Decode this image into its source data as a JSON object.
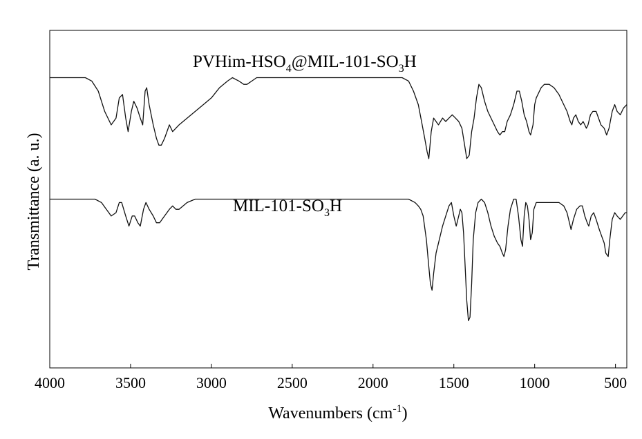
{
  "chart_data": {
    "type": "line",
    "title": "",
    "xlabel": "Wavenumbers (cm",
    "xlabel_sup": "-1",
    "xlabel_tail": ")",
    "ylabel": "Transmittance (a. u.)",
    "xlim": [
      4000,
      430
    ],
    "ylim": [
      0,
      100
    ],
    "xticks": [
      4000,
      3500,
      3000,
      2500,
      2000,
      1500,
      1000,
      500
    ],
    "xtick_labels": [
      "4000",
      "3500",
      "3000",
      "2500",
      "2000",
      "1500",
      "1000",
      "500"
    ],
    "show_yticks": false,
    "series": [
      {
        "name": "PVHim-HSO4@MIL-101-SO3H",
        "label_main": "PVHim-HSO",
        "label_sub": "4",
        "label_mid": "@MIL-101-SO",
        "label_sub2": "3",
        "label_end": "H",
        "points": [
          [
            4000,
            86
          ],
          [
            3780,
            86
          ],
          [
            3740,
            85
          ],
          [
            3700,
            82
          ],
          [
            3660,
            76
          ],
          [
            3620,
            72
          ],
          [
            3590,
            74
          ],
          [
            3570,
            80
          ],
          [
            3550,
            81
          ],
          [
            3530,
            74
          ],
          [
            3515,
            70
          ],
          [
            3495,
            76
          ],
          [
            3480,
            79
          ],
          [
            3460,
            77
          ],
          [
            3440,
            74
          ],
          [
            3425,
            72
          ],
          [
            3410,
            82
          ],
          [
            3400,
            83
          ],
          [
            3385,
            78
          ],
          [
            3360,
            72
          ],
          [
            3340,
            68
          ],
          [
            3325,
            66
          ],
          [
            3310,
            66
          ],
          [
            3290,
            68
          ],
          [
            3260,
            72
          ],
          [
            3240,
            70
          ],
          [
            3220,
            71
          ],
          [
            3200,
            72
          ],
          [
            3150,
            74
          ],
          [
            3100,
            76
          ],
          [
            3050,
            78
          ],
          [
            3000,
            80
          ],
          [
            2950,
            83
          ],
          [
            2900,
            85
          ],
          [
            2870,
            86
          ],
          [
            2830,
            85
          ],
          [
            2800,
            84
          ],
          [
            2780,
            84
          ],
          [
            2750,
            85
          ],
          [
            2720,
            86
          ],
          [
            2600,
            86
          ],
          [
            2500,
            86
          ],
          [
            2400,
            86
          ],
          [
            2330,
            86
          ],
          [
            2300,
            86
          ],
          [
            2000,
            86
          ],
          [
            1820,
            86
          ],
          [
            1780,
            85
          ],
          [
            1750,
            82
          ],
          [
            1720,
            78
          ],
          [
            1700,
            73
          ],
          [
            1680,
            68
          ],
          [
            1665,
            64
          ],
          [
            1655,
            62
          ],
          [
            1640,
            70
          ],
          [
            1625,
            74
          ],
          [
            1610,
            73
          ],
          [
            1595,
            72
          ],
          [
            1570,
            74
          ],
          [
            1550,
            73
          ],
          [
            1530,
            74
          ],
          [
            1510,
            75
          ],
          [
            1490,
            74
          ],
          [
            1470,
            73
          ],
          [
            1450,
            71
          ],
          [
            1430,
            65
          ],
          [
            1420,
            62
          ],
          [
            1405,
            63
          ],
          [
            1390,
            70
          ],
          [
            1375,
            74
          ],
          [
            1360,
            80
          ],
          [
            1345,
            84
          ],
          [
            1330,
            83
          ],
          [
            1310,
            79
          ],
          [
            1290,
            76
          ],
          [
            1270,
            74
          ],
          [
            1250,
            72
          ],
          [
            1230,
            70
          ],
          [
            1215,
            69
          ],
          [
            1200,
            70
          ],
          [
            1185,
            70
          ],
          [
            1170,
            73
          ],
          [
            1150,
            75
          ],
          [
            1130,
            78
          ],
          [
            1110,
            82
          ],
          [
            1095,
            82
          ],
          [
            1080,
            79
          ],
          [
            1065,
            75
          ],
          [
            1050,
            73
          ],
          [
            1035,
            70
          ],
          [
            1025,
            69
          ],
          [
            1010,
            72
          ],
          [
            1000,
            78
          ],
          [
            990,
            80
          ],
          [
            960,
            83
          ],
          [
            940,
            84
          ],
          [
            910,
            84
          ],
          [
            880,
            83
          ],
          [
            850,
            81
          ],
          [
            820,
            78
          ],
          [
            800,
            76
          ],
          [
            780,
            73
          ],
          [
            770,
            72
          ],
          [
            760,
            74
          ],
          [
            745,
            75
          ],
          [
            730,
            73
          ],
          [
            715,
            72
          ],
          [
            700,
            73
          ],
          [
            690,
            72
          ],
          [
            680,
            71
          ],
          [
            670,
            72
          ],
          [
            655,
            75
          ],
          [
            640,
            76
          ],
          [
            620,
            76
          ],
          [
            605,
            74
          ],
          [
            590,
            72
          ],
          [
            570,
            71
          ],
          [
            555,
            69
          ],
          [
            540,
            71
          ],
          [
            520,
            76
          ],
          [
            505,
            78
          ],
          [
            490,
            76
          ],
          [
            470,
            75
          ],
          [
            450,
            77
          ],
          [
            430,
            78
          ]
        ]
      },
      {
        "name": "MIL-101-SO3H",
        "label_main": "MIL-101-SO",
        "label_sub": "3",
        "label_end": "H",
        "points": [
          [
            4000,
            50
          ],
          [
            3800,
            50
          ],
          [
            3720,
            50
          ],
          [
            3680,
            49
          ],
          [
            3650,
            47
          ],
          [
            3620,
            45
          ],
          [
            3590,
            46
          ],
          [
            3570,
            49
          ],
          [
            3555,
            49
          ],
          [
            3530,
            45
          ],
          [
            3510,
            42
          ],
          [
            3490,
            45
          ],
          [
            3475,
            45
          ],
          [
            3455,
            43
          ],
          [
            3440,
            42
          ],
          [
            3420,
            47
          ],
          [
            3405,
            49
          ],
          [
            3385,
            47
          ],
          [
            3360,
            45
          ],
          [
            3340,
            43
          ],
          [
            3320,
            43
          ],
          [
            3290,
            45
          ],
          [
            3260,
            47
          ],
          [
            3240,
            48
          ],
          [
            3220,
            47
          ],
          [
            3200,
            47
          ],
          [
            3150,
            49
          ],
          [
            3100,
            50
          ],
          [
            3050,
            50
          ],
          [
            2900,
            50
          ],
          [
            2700,
            50
          ],
          [
            2300,
            50
          ],
          [
            2000,
            50
          ],
          [
            1780,
            50
          ],
          [
            1740,
            49
          ],
          [
            1720,
            48
          ],
          [
            1705,
            47
          ],
          [
            1690,
            45
          ],
          [
            1670,
            38
          ],
          [
            1655,
            30
          ],
          [
            1645,
            25
          ],
          [
            1635,
            23
          ],
          [
            1625,
            28
          ],
          [
            1610,
            34
          ],
          [
            1590,
            38
          ],
          [
            1570,
            42
          ],
          [
            1550,
            45
          ],
          [
            1530,
            48
          ],
          [
            1515,
            49
          ],
          [
            1500,
            45
          ],
          [
            1485,
            42
          ],
          [
            1470,
            45
          ],
          [
            1460,
            47
          ],
          [
            1450,
            46
          ],
          [
            1440,
            40
          ],
          [
            1430,
            30
          ],
          [
            1420,
            20
          ],
          [
            1410,
            14
          ],
          [
            1400,
            15
          ],
          [
            1390,
            25
          ],
          [
            1380,
            38
          ],
          [
            1365,
            46
          ],
          [
            1350,
            49
          ],
          [
            1330,
            50
          ],
          [
            1310,
            49
          ],
          [
            1290,
            46
          ],
          [
            1270,
            42
          ],
          [
            1250,
            39
          ],
          [
            1230,
            37
          ],
          [
            1215,
            36
          ],
          [
            1200,
            34
          ],
          [
            1190,
            33
          ],
          [
            1180,
            35
          ],
          [
            1165,
            42
          ],
          [
            1150,
            47
          ],
          [
            1130,
            50
          ],
          [
            1115,
            50
          ],
          [
            1100,
            45
          ],
          [
            1085,
            38
          ],
          [
            1075,
            36
          ],
          [
            1065,
            45
          ],
          [
            1055,
            49
          ],
          [
            1045,
            48
          ],
          [
            1035,
            44
          ],
          [
            1025,
            38
          ],
          [
            1015,
            40
          ],
          [
            1005,
            47
          ],
          [
            990,
            49
          ],
          [
            950,
            49
          ],
          [
            900,
            49
          ],
          [
            850,
            49
          ],
          [
            820,
            48
          ],
          [
            800,
            46
          ],
          [
            785,
            43
          ],
          [
            775,
            41
          ],
          [
            760,
            44
          ],
          [
            740,
            47
          ],
          [
            720,
            48
          ],
          [
            705,
            48
          ],
          [
            690,
            45
          ],
          [
            675,
            43
          ],
          [
            665,
            42
          ],
          [
            650,
            45
          ],
          [
            635,
            46
          ],
          [
            620,
            44
          ],
          [
            600,
            41
          ],
          [
            585,
            39
          ],
          [
            570,
            37
          ],
          [
            560,
            34
          ],
          [
            545,
            33
          ],
          [
            535,
            38
          ],
          [
            520,
            44
          ],
          [
            505,
            46
          ],
          [
            490,
            45
          ],
          [
            470,
            44
          ],
          [
            455,
            45
          ],
          [
            440,
            46
          ],
          [
            430,
            46
          ]
        ]
      }
    ]
  }
}
